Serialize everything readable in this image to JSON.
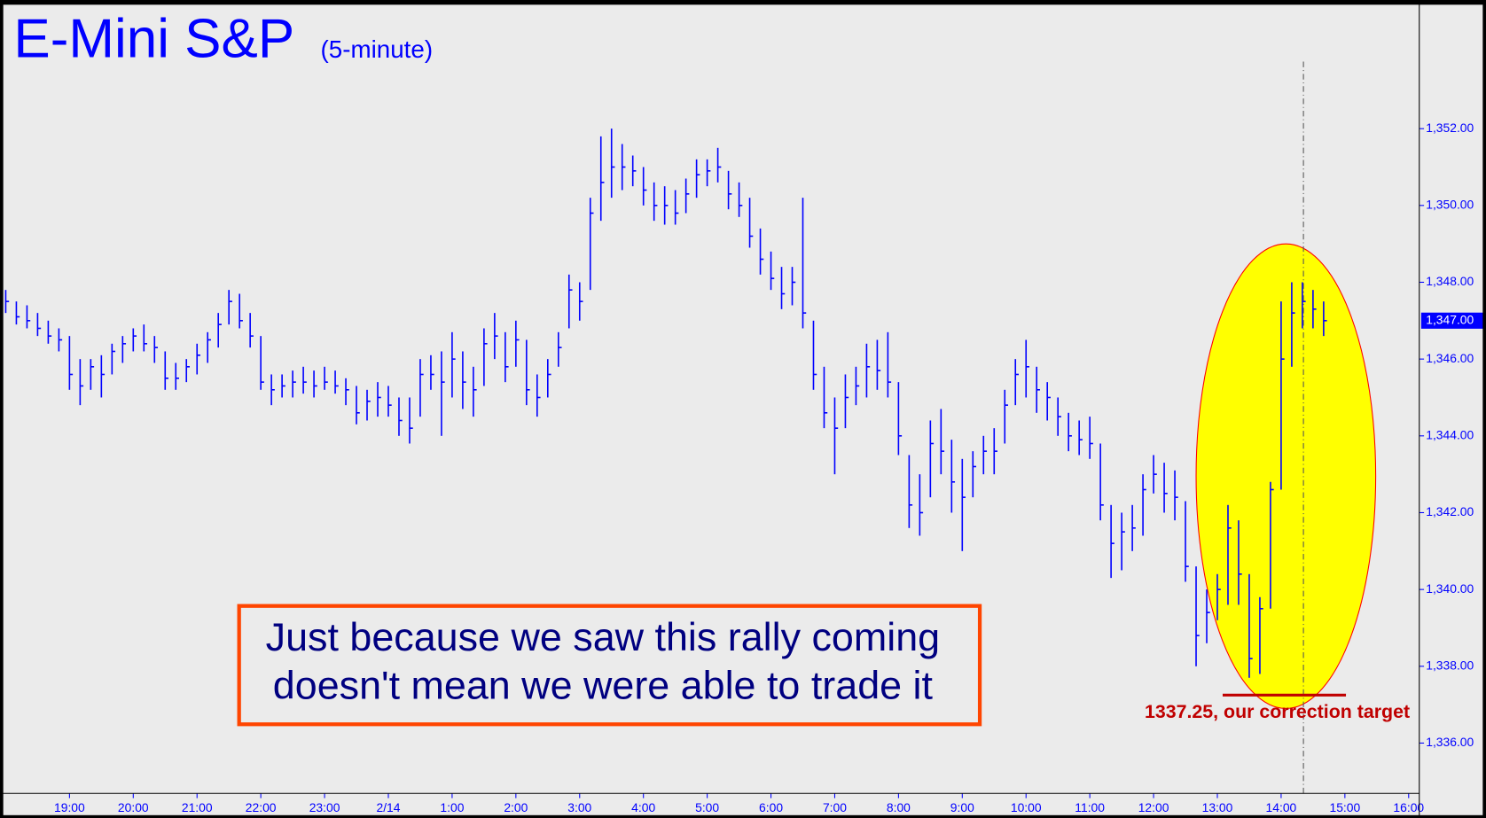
{
  "chart_data": {
    "type": "ohlc",
    "title": "E-Mini S&P",
    "subtitle": "(5-minute)",
    "color": "#0000ff",
    "xlim": [
      1075,
      2410
    ],
    "ylim": [
      1334.69,
      1355.35
    ],
    "xticks": [
      {
        "value": 1140,
        "label": "19:00"
      },
      {
        "value": 1200,
        "label": "20:00"
      },
      {
        "value": 1260,
        "label": "21:00"
      },
      {
        "value": 1320,
        "label": "22:00"
      },
      {
        "value": 1380,
        "label": "23:00"
      },
      {
        "value": 1440,
        "label": "2/14"
      },
      {
        "value": 1500,
        "label": "1:00"
      },
      {
        "value": 1560,
        "label": "2:00"
      },
      {
        "value": 1620,
        "label": "3:00"
      },
      {
        "value": 1680,
        "label": "4:00"
      },
      {
        "value": 1740,
        "label": "5:00"
      },
      {
        "value": 1800,
        "label": "6:00"
      },
      {
        "value": 1860,
        "label": "7:00"
      },
      {
        "value": 1920,
        "label": "8:00"
      },
      {
        "value": 1980,
        "label": "9:00"
      },
      {
        "value": 2040,
        "label": "10:00"
      },
      {
        "value": 2100,
        "label": "11:00"
      },
      {
        "value": 2160,
        "label": "12:00"
      },
      {
        "value": 2220,
        "label": "13:00"
      },
      {
        "value": 2280,
        "label": "14:00"
      },
      {
        "value": 2340,
        "label": "15:00"
      },
      {
        "value": 2400,
        "label": "16:00"
      }
    ],
    "yticks": [
      {
        "value": 1336,
        "label": "1,336.00"
      },
      {
        "value": 1338,
        "label": "1,338.00"
      },
      {
        "value": 1340,
        "label": "1,340.00"
      },
      {
        "value": 1342,
        "label": "1,342.00"
      },
      {
        "value": 1344,
        "label": "1,344.00"
      },
      {
        "value": 1346,
        "label": "1,346.00"
      },
      {
        "value": 1348,
        "label": "1,348.00"
      },
      {
        "value": 1350,
        "label": "1,350.00"
      },
      {
        "value": 1352,
        "label": "1,352.00"
      }
    ],
    "x": [
      1080,
      1090,
      1100,
      1110,
      1120,
      1130,
      1140,
      1150,
      1160,
      1170,
      1180,
      1190,
      1200,
      1210,
      1220,
      1230,
      1240,
      1250,
      1260,
      1270,
      1280,
      1290,
      1300,
      1310,
      1320,
      1330,
      1340,
      1350,
      1360,
      1370,
      1380,
      1390,
      1400,
      1410,
      1420,
      1430,
      1440,
      1450,
      1460,
      1470,
      1480,
      1490,
      1500,
      1510,
      1520,
      1530,
      1540,
      1550,
      1560,
      1570,
      1580,
      1590,
      1600,
      1610,
      1620,
      1630,
      1640,
      1650,
      1660,
      1670,
      1680,
      1690,
      1700,
      1710,
      1720,
      1730,
      1740,
      1750,
      1760,
      1770,
      1780,
      1790,
      1800,
      1810,
      1820,
      1830,
      1840,
      1850,
      1860,
      1870,
      1880,
      1890,
      1900,
      1910,
      1920,
      1930,
      1940,
      1950,
      1960,
      1970,
      1980,
      1990,
      2000,
      2010,
      2020,
      2030,
      2040,
      2050,
      2060,
      2070,
      2080,
      2090,
      2100,
      2110,
      2120,
      2130,
      2140,
      2150,
      2160,
      2170,
      2180,
      2190,
      2200,
      2210,
      2220,
      2230,
      2240,
      2250,
      2260,
      2270,
      2280,
      2290,
      2300,
      2310,
      2320
    ],
    "high": [
      1347.8,
      1347.5,
      1347.4,
      1347.2,
      1347.0,
      1346.8,
      1346.6,
      1346.0,
      1346.0,
      1346.1,
      1346.4,
      1346.6,
      1346.8,
      1346.9,
      1346.6,
      1346.2,
      1345.9,
      1346.0,
      1346.4,
      1346.7,
      1347.2,
      1347.8,
      1347.7,
      1347.2,
      1346.6,
      1345.6,
      1345.6,
      1345.7,
      1345.8,
      1345.7,
      1345.8,
      1345.7,
      1345.5,
      1345.3,
      1345.2,
      1345.4,
      1345.3,
      1345.0,
      1345.0,
      1346.0,
      1346.1,
      1346.2,
      1346.7,
      1346.2,
      1345.8,
      1346.8,
      1347.2,
      1346.7,
      1347.0,
      1346.5,
      1345.6,
      1346.0,
      1346.7,
      1348.2,
      1348.0,
      1350.2,
      1351.8,
      1352.0,
      1351.6,
      1351.3,
      1351.0,
      1350.6,
      1350.5,
      1350.4,
      1350.7,
      1351.2,
      1351.2,
      1351.5,
      1350.9,
      1350.6,
      1350.2,
      1349.4,
      1348.8,
      1348.4,
      1348.4,
      1350.2,
      1347.0,
      1345.8,
      1345.0,
      1345.6,
      1345.8,
      1346.4,
      1346.5,
      1346.7,
      1345.4,
      1343.5,
      1343.0,
      1344.4,
      1344.7,
      1343.9,
      1343.4,
      1343.6,
      1344.0,
      1344.2,
      1345.2,
      1346.0,
      1346.5,
      1345.8,
      1345.4,
      1345.0,
      1344.6,
      1344.4,
      1344.5,
      1343.8,
      1342.2,
      1342.0,
      1342.2,
      1343.0,
      1343.5,
      1343.3,
      1343.1,
      1342.3,
      1340.6,
      1340.0,
      1340.4,
      1342.2,
      1341.8,
      1340.4,
      1339.8,
      1342.8,
      1347.5,
      1348.0,
      1348.0,
      1347.8,
      1347.5
    ],
    "low": [
      1347.2,
      1346.9,
      1346.8,
      1346.6,
      1346.4,
      1346.2,
      1345.2,
      1344.8,
      1345.2,
      1345.0,
      1345.6,
      1345.9,
      1346.2,
      1346.2,
      1345.9,
      1345.2,
      1345.2,
      1345.4,
      1345.6,
      1345.9,
      1346.3,
      1346.9,
      1346.8,
      1346.3,
      1345.2,
      1344.8,
      1345.0,
      1345.0,
      1345.1,
      1345.0,
      1345.2,
      1345.1,
      1344.8,
      1344.3,
      1344.4,
      1344.5,
      1344.5,
      1344.0,
      1343.8,
      1344.5,
      1345.2,
      1344.0,
      1345.0,
      1344.7,
      1344.5,
      1345.3,
      1346.0,
      1345.4,
      1345.8,
      1344.8,
      1344.5,
      1345.0,
      1345.8,
      1346.8,
      1347.0,
      1347.8,
      1349.6,
      1350.2,
      1350.4,
      1350.5,
      1350.0,
      1349.6,
      1349.5,
      1349.5,
      1349.8,
      1350.2,
      1350.5,
      1350.6,
      1349.9,
      1349.7,
      1348.9,
      1348.2,
      1347.8,
      1347.3,
      1347.4,
      1346.8,
      1345.2,
      1344.2,
      1343.0,
      1344.2,
      1344.8,
      1345.0,
      1345.2,
      1345.0,
      1343.5,
      1341.6,
      1341.4,
      1342.4,
      1343.0,
      1342.0,
      1341.0,
      1342.4,
      1343.0,
      1343.0,
      1343.8,
      1344.8,
      1345.0,
      1344.6,
      1344.4,
      1344.0,
      1343.6,
      1343.5,
      1343.4,
      1341.8,
      1340.3,
      1340.5,
      1341.0,
      1341.4,
      1342.5,
      1342.0,
      1341.8,
      1340.2,
      1338.0,
      1338.6,
      1339.2,
      1339.6,
      1339.6,
      1337.7,
      1337.8,
      1339.5,
      1342.6,
      1345.8,
      1346.8,
      1346.8,
      1346.6
    ],
    "close": [
      1347.5,
      1347.1,
      1347.0,
      1346.8,
      1346.6,
      1346.5,
      1345.6,
      1345.3,
      1345.8,
      1345.6,
      1346.2,
      1346.4,
      1346.6,
      1346.4,
      1346.3,
      1345.5,
      1345.5,
      1345.8,
      1346.1,
      1346.5,
      1346.9,
      1347.5,
      1347.0,
      1346.6,
      1345.4,
      1345.2,
      1345.3,
      1345.4,
      1345.4,
      1345.3,
      1345.4,
      1345.3,
      1345.2,
      1344.6,
      1344.9,
      1345.0,
      1344.8,
      1344.4,
      1344.2,
      1345.6,
      1345.6,
      1345.4,
      1346.0,
      1345.4,
      1345.2,
      1346.4,
      1346.6,
      1345.8,
      1346.5,
      1345.2,
      1345.0,
      1345.6,
      1346.3,
      1347.8,
      1347.5,
      1349.8,
      1350.6,
      1351.0,
      1351.0,
      1350.9,
      1350.4,
      1350.0,
      1350.0,
      1349.8,
      1350.3,
      1350.8,
      1350.9,
      1351.0,
      1350.3,
      1350.0,
      1349.2,
      1348.6,
      1348.1,
      1347.7,
      1348.0,
      1347.2,
      1345.6,
      1344.6,
      1344.2,
      1345.0,
      1345.3,
      1345.8,
      1345.7,
      1345.4,
      1344.0,
      1342.2,
      1342.0,
      1343.8,
      1343.6,
      1342.8,
      1342.4,
      1343.2,
      1343.6,
      1343.6,
      1344.8,
      1345.6,
      1345.8,
      1345.2,
      1345.0,
      1344.5,
      1344.0,
      1343.9,
      1343.8,
      1342.2,
      1341.2,
      1341.5,
      1341.6,
      1342.6,
      1343.0,
      1342.5,
      1342.4,
      1340.6,
      1338.8,
      1339.4,
      1340.0,
      1341.6,
      1340.4,
      1338.2,
      1339.5,
      1342.6,
      1346.0,
      1347.2,
      1347.5,
      1347.3,
      1347.0
    ],
    "last_price": {
      "value": 1347,
      "label": "1,347.00"
    },
    "cursor_x": 2301,
    "highlight": {
      "x": [
        2200,
        2369
      ],
      "y": [
        1336.9,
        1349
      ],
      "color": "#ffff00"
    },
    "target": {
      "value": 1337.25,
      "label": "1337.25, our correction target",
      "x": [
        2225,
        2341
      ],
      "color": "#c00000"
    },
    "annotation": [
      "Just because we saw this rally coming",
      "doesn't mean we were able to trade it"
    ]
  }
}
